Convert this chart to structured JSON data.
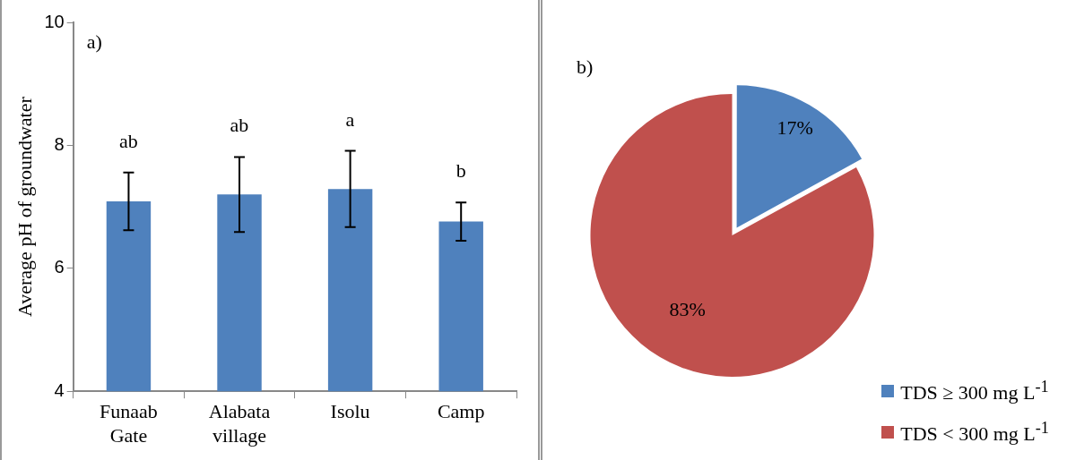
{
  "chart_data": [
    {
      "type": "bar",
      "ylabel": "Average pH of groundwater",
      "categories": [
        "Funaab Gate",
        "Alabata village",
        "Isolu",
        "Camp"
      ],
      "values": [
        7.09,
        7.2,
        7.29,
        6.76
      ],
      "errors": [
        0.47,
        0.61,
        0.62,
        0.31
      ],
      "color": "#4f81bd",
      "ylim": [
        4,
        10
      ],
      "yticks": [
        4,
        6,
        8,
        10
      ],
      "grid": false,
      "legend": false,
      "annotations": [
        "a)",
        "ab",
        "ab",
        "a",
        "b"
      ]
    },
    {
      "type": "pie",
      "categories": [
        "TDS ≥ 300 mg L$^{-1}$",
        "TDS < 300 mg L$^{-1}$"
      ],
      "values": [
        17,
        83
      ],
      "colors": [
        "#4f81bd",
        "#c0504d"
      ],
      "value_labels": [
        "17%",
        "83%"
      ],
      "legend": "bottom right",
      "annotations": [
        "b)"
      ]
    }
  ]
}
